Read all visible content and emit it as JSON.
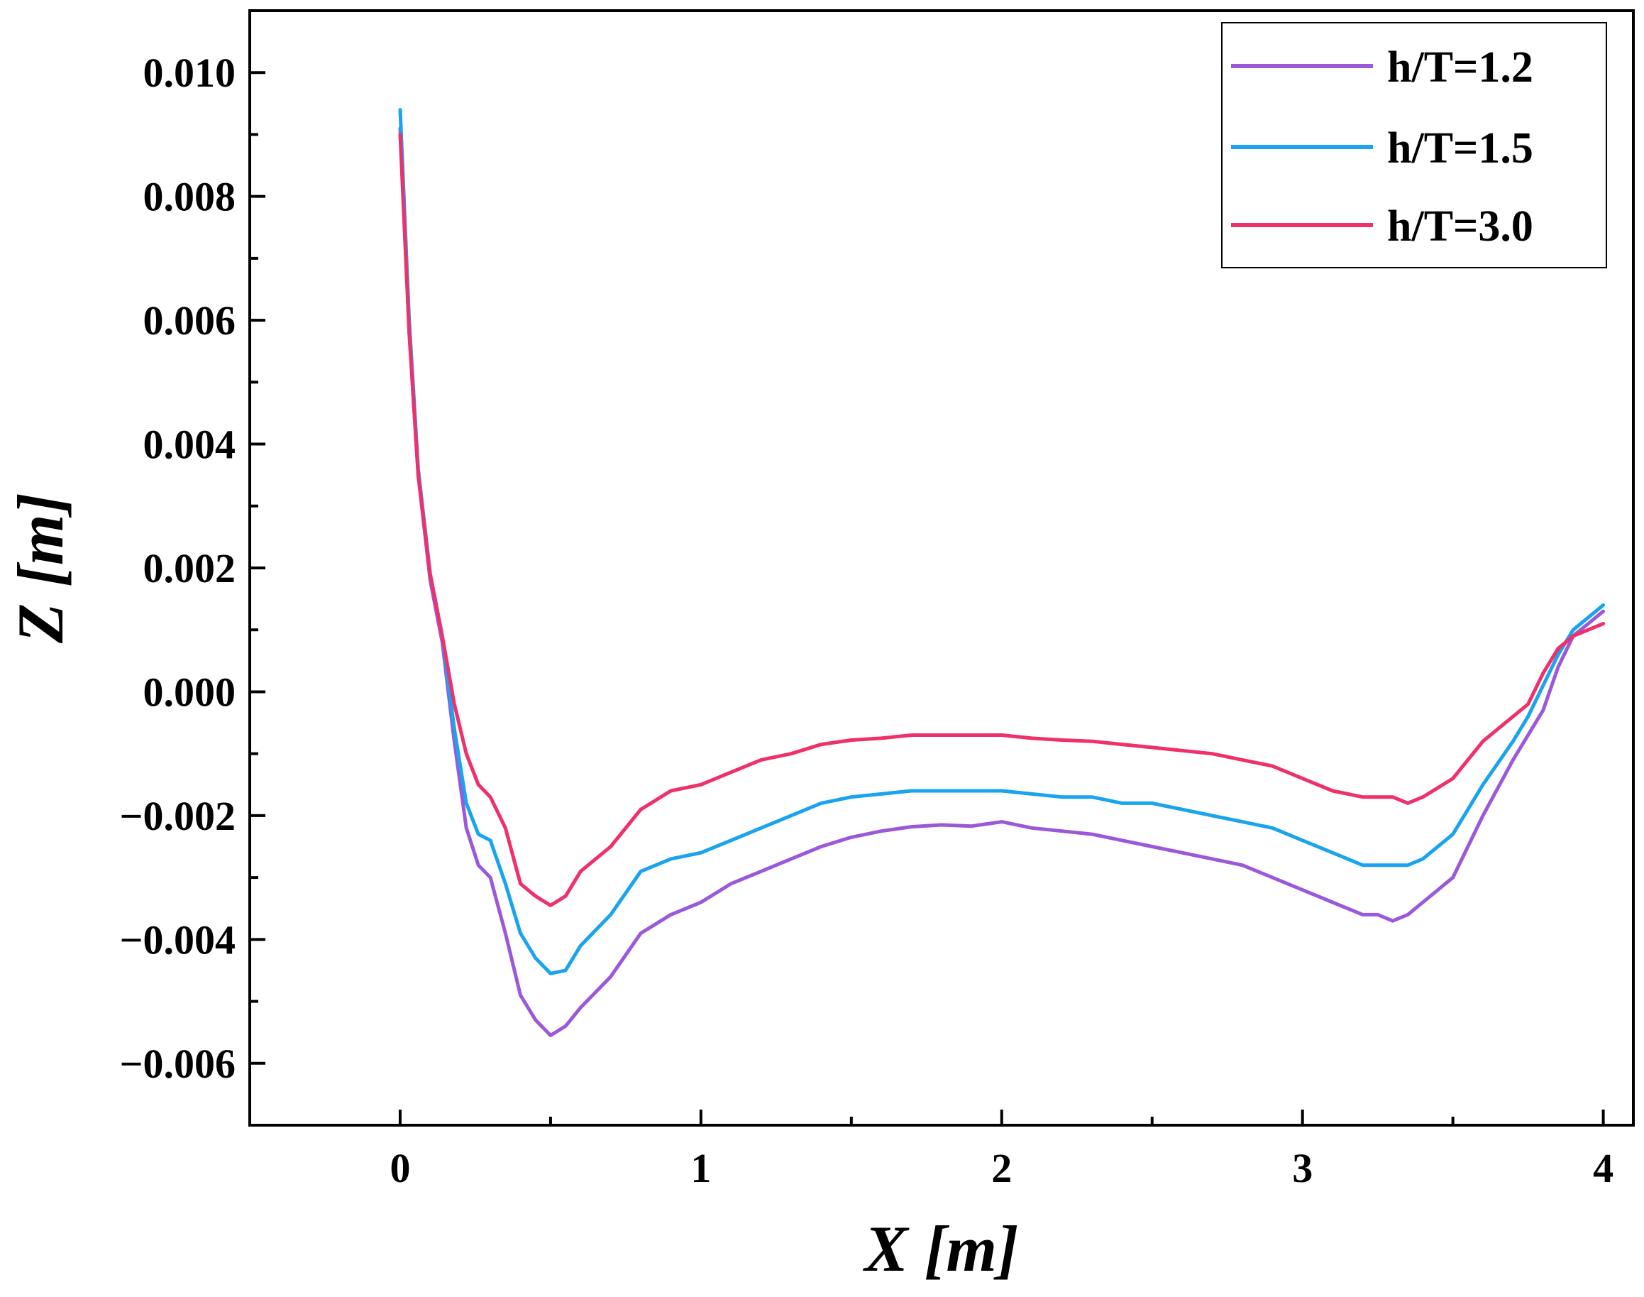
{
  "chart_data": {
    "type": "line",
    "title": "",
    "xlabel": "X [m]",
    "ylabel": "Z [m]",
    "xlim": [
      -0.5,
      4.1
    ],
    "ylim": [
      -0.007,
      0.011
    ],
    "xticks": [
      0,
      1,
      2,
      3,
      4
    ],
    "xtick_labels": [
      "0",
      "1",
      "2",
      "3",
      "4"
    ],
    "yticks": [
      -0.006,
      -0.004,
      -0.002,
      0.0,
      0.002,
      0.004,
      0.006,
      0.008,
      0.01
    ],
    "ytick_labels": [
      "−0.006",
      "−0.004",
      "−0.002",
      "0.000",
      "0.002",
      "0.004",
      "0.006",
      "0.008",
      "0.010"
    ],
    "grid": false,
    "legend_position": "top-right",
    "series": [
      {
        "name": "h/T=1.2",
        "color": "#9B59D9",
        "x": [
          0,
          0.03,
          0.06,
          0.1,
          0.14,
          0.18,
          0.22,
          0.26,
          0.3,
          0.35,
          0.4,
          0.45,
          0.5,
          0.55,
          0.6,
          0.7,
          0.8,
          0.9,
          1.0,
          1.1,
          1.2,
          1.3,
          1.4,
          1.5,
          1.6,
          1.7,
          1.8,
          1.9,
          2.0,
          2.1,
          2.2,
          2.3,
          2.4,
          2.5,
          2.6,
          2.7,
          2.8,
          2.9,
          3.0,
          3.1,
          3.2,
          3.25,
          3.3,
          3.35,
          3.4,
          3.5,
          3.6,
          3.7,
          3.75,
          3.8,
          3.85,
          3.9,
          3.95,
          4.0
        ],
        "y": [
          0.0091,
          0.0058,
          0.0035,
          0.0018,
          0.0008,
          -0.0008,
          -0.0022,
          -0.0028,
          -0.003,
          -0.0039,
          -0.0049,
          -0.0053,
          -0.00555,
          -0.0054,
          -0.0051,
          -0.0046,
          -0.0039,
          -0.0036,
          -0.0034,
          -0.0031,
          -0.0029,
          -0.0027,
          -0.0025,
          -0.00235,
          -0.00225,
          -0.00218,
          -0.00215,
          -0.00217,
          -0.0021,
          -0.0022,
          -0.00225,
          -0.0023,
          -0.0024,
          -0.0025,
          -0.0026,
          -0.0027,
          -0.0028,
          -0.003,
          -0.0032,
          -0.0034,
          -0.0036,
          -0.0036,
          -0.0037,
          -0.0036,
          -0.0034,
          -0.003,
          -0.002,
          -0.0011,
          -0.0007,
          -0.0003,
          0.0004,
          0.0009,
          0.0011,
          0.0013
        ]
      },
      {
        "name": "h/T=1.5",
        "color": "#1AA3EE",
        "x": [
          0,
          0.03,
          0.06,
          0.1,
          0.14,
          0.18,
          0.22,
          0.26,
          0.3,
          0.35,
          0.4,
          0.45,
          0.5,
          0.55,
          0.6,
          0.7,
          0.8,
          0.9,
          1.0,
          1.1,
          1.2,
          1.3,
          1.4,
          1.5,
          1.6,
          1.7,
          1.8,
          1.9,
          2.0,
          2.1,
          2.2,
          2.3,
          2.4,
          2.5,
          2.6,
          2.7,
          2.8,
          2.9,
          3.0,
          3.1,
          3.2,
          3.25,
          3.3,
          3.35,
          3.4,
          3.5,
          3.6,
          3.7,
          3.75,
          3.8,
          3.85,
          3.9,
          3.95,
          4.0
        ],
        "y": [
          0.0094,
          0.006,
          0.0036,
          0.0019,
          0.0009,
          -0.0006,
          -0.0018,
          -0.0023,
          -0.0024,
          -0.0031,
          -0.0039,
          -0.0043,
          -0.00455,
          -0.0045,
          -0.0041,
          -0.0036,
          -0.0029,
          -0.0027,
          -0.0026,
          -0.0024,
          -0.0022,
          -0.002,
          -0.0018,
          -0.0017,
          -0.00165,
          -0.0016,
          -0.0016,
          -0.0016,
          -0.0016,
          -0.00165,
          -0.0017,
          -0.0017,
          -0.0018,
          -0.0018,
          -0.0019,
          -0.002,
          -0.0021,
          -0.0022,
          -0.0024,
          -0.0026,
          -0.0028,
          -0.0028,
          -0.0028,
          -0.0028,
          -0.0027,
          -0.0023,
          -0.0015,
          -0.0008,
          -0.0004,
          0.0001,
          0.0006,
          0.001,
          0.0012,
          0.0014
        ]
      },
      {
        "name": "h/T=3.0",
        "color": "#F0306A",
        "x": [
          0,
          0.03,
          0.06,
          0.1,
          0.14,
          0.18,
          0.22,
          0.26,
          0.3,
          0.35,
          0.4,
          0.45,
          0.5,
          0.55,
          0.6,
          0.7,
          0.8,
          0.9,
          1.0,
          1.1,
          1.2,
          1.3,
          1.4,
          1.5,
          1.6,
          1.7,
          1.8,
          1.9,
          2.0,
          2.1,
          2.2,
          2.3,
          2.4,
          2.5,
          2.6,
          2.7,
          2.8,
          2.9,
          3.0,
          3.1,
          3.2,
          3.25,
          3.3,
          3.35,
          3.4,
          3.5,
          3.6,
          3.7,
          3.75,
          3.8,
          3.85,
          3.9,
          3.95,
          4.0
        ],
        "y": [
          0.009,
          0.0058,
          0.0035,
          0.0019,
          0.0009,
          -0.0002,
          -0.001,
          -0.0015,
          -0.0017,
          -0.0022,
          -0.0031,
          -0.0033,
          -0.00345,
          -0.0033,
          -0.0029,
          -0.0025,
          -0.0019,
          -0.0016,
          -0.0015,
          -0.0013,
          -0.0011,
          -0.001,
          -0.00085,
          -0.00078,
          -0.00075,
          -0.0007,
          -0.0007,
          -0.0007,
          -0.0007,
          -0.00075,
          -0.00078,
          -0.0008,
          -0.00085,
          -0.0009,
          -0.00095,
          -0.001,
          -0.0011,
          -0.0012,
          -0.0014,
          -0.0016,
          -0.0017,
          -0.0017,
          -0.0017,
          -0.0018,
          -0.0017,
          -0.0014,
          -0.0008,
          -0.0004,
          -0.0002,
          0.0003,
          0.0007,
          0.0009,
          0.001,
          0.0011
        ]
      }
    ]
  }
}
